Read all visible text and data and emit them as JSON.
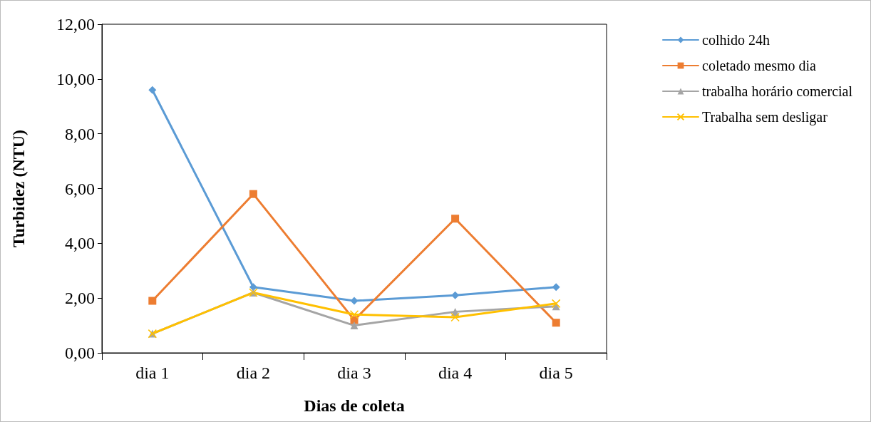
{
  "chart_data": {
    "type": "line",
    "xlabel": "Dias de coleta",
    "ylabel": "Turbidez (NTU)",
    "categories": [
      "dia 1",
      "dia 2",
      "dia 3",
      "dia 4",
      "dia 5"
    ],
    "series": [
      {
        "name": "colhido 24h",
        "color": "#5b9bd5",
        "marker": "diamond",
        "values": [
          9.6,
          2.4,
          1.9,
          2.1,
          2.4
        ]
      },
      {
        "name": "coletado mesmo dia",
        "color": "#ed7d31",
        "marker": "square",
        "values": [
          1.9,
          5.8,
          1.2,
          4.9,
          1.1
        ]
      },
      {
        "name": "trabalha horário comercial",
        "color": "#a5a5a5",
        "marker": "triangle",
        "values": [
          0.7,
          2.2,
          1.0,
          1.5,
          1.7
        ]
      },
      {
        "name": "Trabalha sem desligar",
        "color": "#ffc000",
        "marker": "cross",
        "values": [
          0.7,
          2.2,
          1.4,
          1.3,
          1.8
        ]
      }
    ],
    "ylim": [
      0,
      12
    ],
    "yticks": [
      {
        "value": 0,
        "label": "0,00"
      },
      {
        "value": 2,
        "label": "2,00"
      },
      {
        "value": 4,
        "label": "4,00"
      },
      {
        "value": 6,
        "label": "6,00"
      },
      {
        "value": 8,
        "label": "8,00"
      },
      {
        "value": 10,
        "label": "10,00"
      },
      {
        "value": 12,
        "label": "12,00"
      }
    ],
    "grid": false,
    "legend": "top right",
    "line_style": "solid"
  }
}
